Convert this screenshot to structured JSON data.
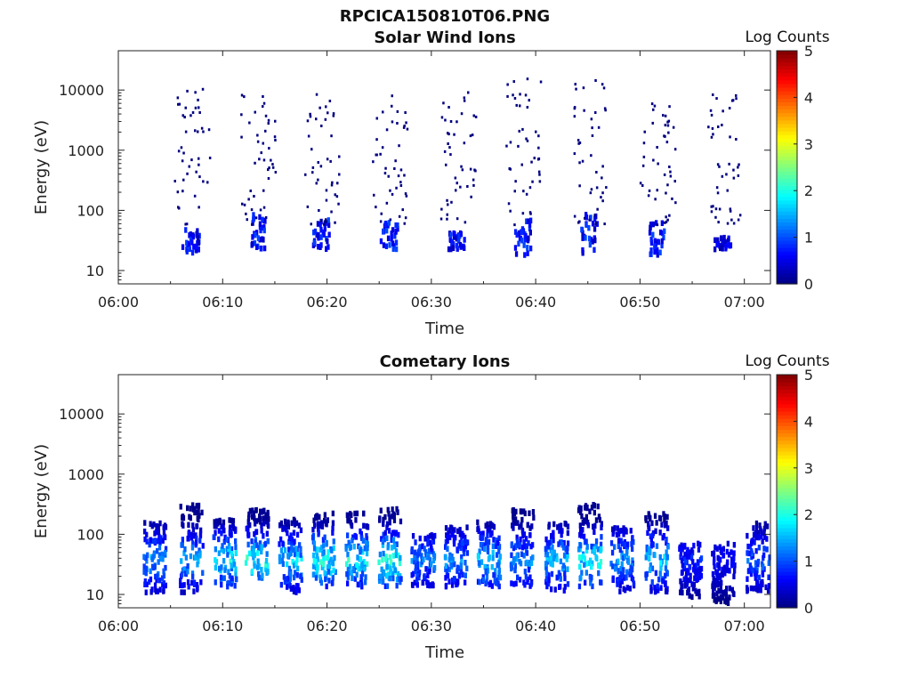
{
  "figure_title": "RPCICA150810T06.PNG",
  "colorbar_title": "Log Counts",
  "colors": {
    "colormap": [
      "#00007f",
      "#0000ff",
      "#007fff",
      "#00ffff",
      "#7fff7f",
      "#ffff00",
      "#ff7f00",
      "#ff0000",
      "#7f0000"
    ],
    "axis": "#222222"
  },
  "chart_data": [
    {
      "type": "heatmap",
      "title": "Solar Wind Ions",
      "xlabel": "Time",
      "ylabel": "Energy (eV)",
      "x_tick_labels": [
        "06:00",
        "06:10",
        "06:20",
        "06:30",
        "06:40",
        "06:50",
        "07:00"
      ],
      "x_ticks_min": [
        0,
        10,
        20,
        30,
        40,
        50,
        60
      ],
      "xlim_min": [
        0,
        62.5
      ],
      "y_scale": "log",
      "y_tick_labels": [
        "10",
        "100",
        "1000",
        "10000"
      ],
      "y_ticks": [
        10,
        100,
        1000,
        10000
      ],
      "ylim": [
        6,
        45000
      ],
      "colorbar": {
        "label": "Log Counts",
        "range": [
          0,
          5
        ],
        "ticks": [
          "0",
          "1",
          "2",
          "3",
          "4",
          "5"
        ]
      },
      "grid": false,
      "bursts": [
        {
          "center_min": 7.0,
          "peak_log_counts": 1.0,
          "core_energy_ev": [
            20,
            60
          ],
          "sparse_max_ev": 11000
        },
        {
          "center_min": 13.3,
          "peak_log_counts": 1.0,
          "core_energy_ev": [
            25,
            100
          ],
          "sparse_max_ev": 9000
        },
        {
          "center_min": 19.5,
          "peak_log_counts": 1.0,
          "core_energy_ev": [
            25,
            80
          ],
          "sparse_max_ev": 10000
        },
        {
          "center_min": 26.0,
          "peak_log_counts": 1.0,
          "core_energy_ev": [
            25,
            70
          ],
          "sparse_max_ev": 10000
        },
        {
          "center_min": 32.5,
          "peak_log_counts": 1.0,
          "core_energy_ev": [
            25,
            50
          ],
          "sparse_max_ev": 12000
        },
        {
          "center_min": 38.8,
          "peak_log_counts": 1.0,
          "core_energy_ev": [
            20,
            80
          ],
          "sparse_max_ev": 20000
        },
        {
          "center_min": 45.2,
          "peak_log_counts": 1.0,
          "core_energy_ev": [
            20,
            100
          ],
          "sparse_max_ev": 18000
        },
        {
          "center_min": 51.6,
          "peak_log_counts": 1.0,
          "core_energy_ev": [
            20,
            70
          ],
          "sparse_max_ev": 10000
        },
        {
          "center_min": 58.0,
          "peak_log_counts": 0.7,
          "core_energy_ev": [
            25,
            40
          ],
          "sparse_max_ev": 9000
        }
      ]
    },
    {
      "type": "heatmap",
      "title": "Cometary Ions",
      "xlabel": "Time",
      "ylabel": "Energy (eV)",
      "x_tick_labels": [
        "06:00",
        "06:10",
        "06:20",
        "06:30",
        "06:40",
        "06:50",
        "07:00"
      ],
      "x_ticks_min": [
        0,
        10,
        20,
        30,
        40,
        50,
        60
      ],
      "xlim_min": [
        0,
        62.5
      ],
      "y_scale": "log",
      "y_tick_labels": [
        "10",
        "100",
        "1000",
        "10000"
      ],
      "y_ticks": [
        10,
        100,
        1000,
        10000
      ],
      "ylim": [
        6,
        45000
      ],
      "colorbar": {
        "label": "Log Counts",
        "range": [
          0,
          5
        ],
        "ticks": [
          "0",
          "1",
          "2",
          "3",
          "4",
          "5"
        ]
      },
      "grid": false,
      "bursts": [
        {
          "center_min": 3.5,
          "peak_log_counts": 1.8,
          "energy_ev": [
            12,
            180
          ]
        },
        {
          "center_min": 7.0,
          "peak_log_counts": 1.8,
          "energy_ev": [
            12,
            350
          ]
        },
        {
          "center_min": 10.2,
          "peak_log_counts": 2.2,
          "energy_ev": [
            15,
            200
          ]
        },
        {
          "center_min": 13.3,
          "peak_log_counts": 2.5,
          "energy_ev": [
            20,
            300
          ]
        },
        {
          "center_min": 16.5,
          "peak_log_counts": 2.0,
          "energy_ev": [
            12,
            200
          ]
        },
        {
          "center_min": 19.7,
          "peak_log_counts": 2.4,
          "energy_ev": [
            15,
            250
          ]
        },
        {
          "center_min": 22.8,
          "peak_log_counts": 2.3,
          "energy_ev": [
            15,
            250
          ]
        },
        {
          "center_min": 26.0,
          "peak_log_counts": 2.6,
          "energy_ev": [
            15,
            300
          ]
        },
        {
          "center_min": 29.2,
          "peak_log_counts": 1.5,
          "energy_ev": [
            15,
            120
          ]
        },
        {
          "center_min": 32.4,
          "peak_log_counts": 1.7,
          "energy_ev": [
            15,
            150
          ]
        },
        {
          "center_min": 35.5,
          "peak_log_counts": 2.0,
          "energy_ev": [
            15,
            200
          ]
        },
        {
          "center_min": 38.7,
          "peak_log_counts": 1.6,
          "energy_ev": [
            15,
            300
          ]
        },
        {
          "center_min": 42.0,
          "peak_log_counts": 1.9,
          "energy_ev": [
            12,
            200
          ]
        },
        {
          "center_min": 45.2,
          "peak_log_counts": 2.4,
          "energy_ev": [
            15,
            350
          ]
        },
        {
          "center_min": 48.3,
          "peak_log_counts": 1.7,
          "energy_ev": [
            12,
            150
          ]
        },
        {
          "center_min": 51.6,
          "peak_log_counts": 2.0,
          "energy_ev": [
            12,
            250
          ]
        },
        {
          "center_min": 54.8,
          "peak_log_counts": 1.0,
          "energy_ev": [
            10,
            80
          ]
        },
        {
          "center_min": 58.0,
          "peak_log_counts": 0.8,
          "energy_ev": [
            8,
            80
          ]
        },
        {
          "center_min": 61.3,
          "peak_log_counts": 1.4,
          "energy_ev": [
            12,
            180
          ]
        }
      ]
    }
  ]
}
